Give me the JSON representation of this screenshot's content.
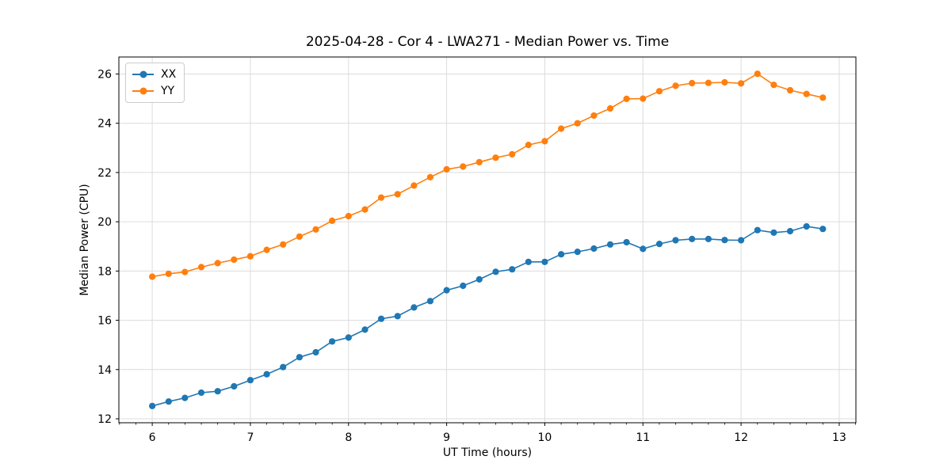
{
  "chart_data": {
    "type": "line",
    "title": "2025-04-28 - Cor 4 - LWA271 - Median Power vs. Time",
    "xlabel": "UT Time (hours)",
    "ylabel": "Median Power (CPU)",
    "xlim": [
      5.66,
      13.17
    ],
    "ylim": [
      11.84,
      26.69
    ],
    "xticks": [
      6,
      7,
      8,
      9,
      10,
      11,
      12,
      13
    ],
    "yticks": [
      12,
      14,
      16,
      18,
      20,
      22,
      24,
      26
    ],
    "x_minor_step": 0.166667,
    "grid": true,
    "grid_color": "#dcdcdc",
    "spine_color": "#000000",
    "legend_position": "upper left",
    "x": [
      6.0,
      6.167,
      6.333,
      6.5,
      6.667,
      6.833,
      7.0,
      7.167,
      7.333,
      7.5,
      7.667,
      7.833,
      8.0,
      8.167,
      8.333,
      8.5,
      8.667,
      8.833,
      9.0,
      9.167,
      9.333,
      9.5,
      9.667,
      9.833,
      10.0,
      10.167,
      10.333,
      10.5,
      10.667,
      10.833,
      11.0,
      11.167,
      11.333,
      11.5,
      11.667,
      11.833,
      12.0,
      12.167,
      12.333,
      12.5,
      12.667,
      12.833
    ],
    "series": [
      {
        "name": "XX",
        "color": "#1f77b4",
        "values": [
          12.52,
          12.7,
          12.85,
          13.06,
          13.12,
          13.32,
          13.57,
          13.81,
          14.1,
          14.5,
          14.7,
          15.14,
          15.3,
          15.62,
          16.06,
          16.17,
          16.52,
          16.78,
          17.22,
          17.4,
          17.66,
          17.97,
          18.07,
          18.37,
          18.37,
          18.68,
          18.78,
          18.91,
          19.08,
          19.17,
          18.9,
          19.1,
          19.25,
          19.3,
          19.3,
          19.26,
          19.25,
          19.66,
          19.56,
          19.62,
          19.81,
          19.71
        ]
      },
      {
        "name": "YY",
        "color": "#ff7f0e",
        "values": [
          17.77,
          17.89,
          17.96,
          18.16,
          18.32,
          18.46,
          18.6,
          18.86,
          19.08,
          19.4,
          19.69,
          20.04,
          20.23,
          20.5,
          20.98,
          21.12,
          21.47,
          21.81,
          22.13,
          22.24,
          22.42,
          22.6,
          22.74,
          23.12,
          23.27,
          23.78,
          24.0,
          24.31,
          24.6,
          24.99,
          25.0,
          25.3,
          25.52,
          25.63,
          25.64,
          25.66,
          25.62,
          26.01,
          25.56,
          25.34,
          25.19,
          25.04
        ]
      }
    ]
  }
}
